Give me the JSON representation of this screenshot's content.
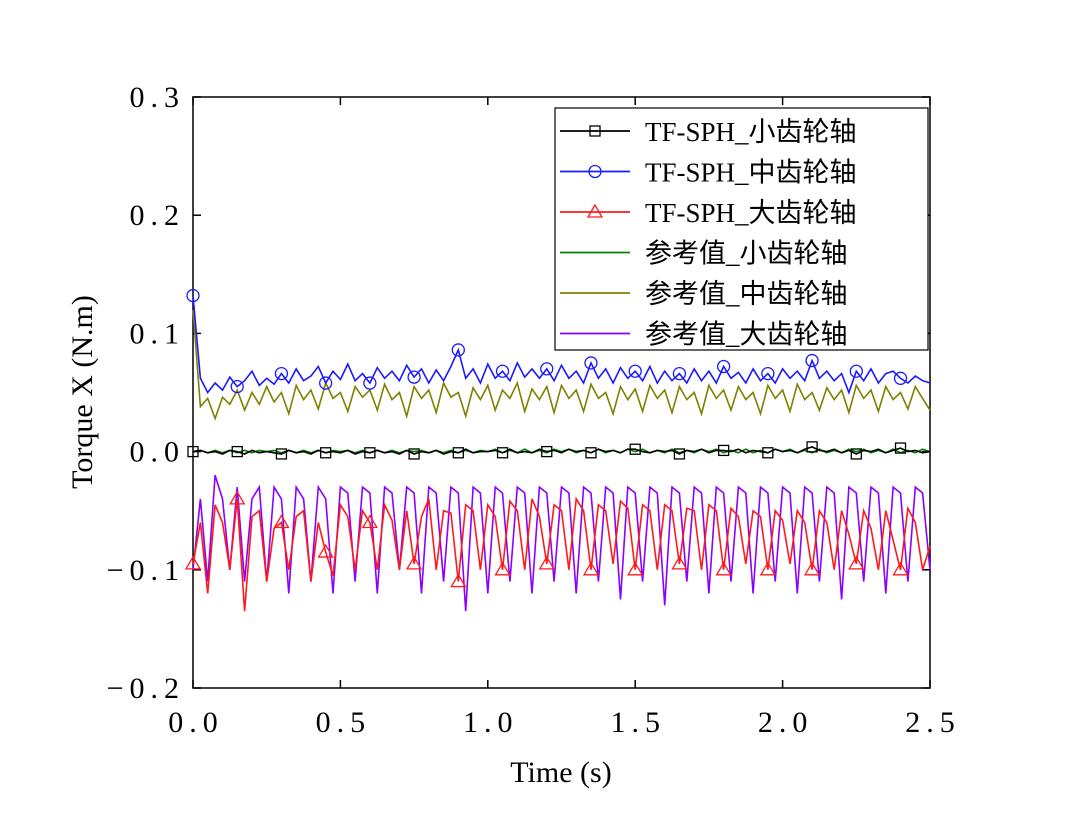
{
  "chart_data": {
    "type": "line",
    "xlabel": "Time (s)",
    "ylabel": "Torque X (N.m)",
    "xlim": [
      0,
      2.5
    ],
    "ylim": [
      -0.2,
      0.3
    ],
    "xticks": [
      {
        "value": 0,
        "label": "0.0"
      },
      0.5,
      {
        "value": 1,
        "label": "1.0"
      },
      1.5,
      {
        "value": 2,
        "label": "2.0"
      },
      2.5
    ],
    "yticks": [
      {
        "value": -0.2,
        "label": "−0.2"
      },
      {
        "value": -0.1,
        "label": "−0.1"
      },
      {
        "value": 0,
        "label": "0.0"
      },
      0.1,
      0.2,
      0.3
    ],
    "legend": "upper right",
    "x": [
      0,
      0.025,
      0.05,
      0.075,
      0.1,
      0.125,
      0.15,
      0.175,
      0.2,
      0.225,
      0.25,
      0.275,
      0.3,
      0.325,
      0.35,
      0.375,
      0.4,
      0.425,
      0.45,
      0.475,
      0.5,
      0.525,
      0.55,
      0.575,
      0.6,
      0.625,
      0.65,
      0.675,
      0.7,
      0.725,
      0.75,
      0.775,
      0.8,
      0.825,
      0.85,
      0.875,
      0.9,
      0.925,
      0.95,
      0.975,
      1,
      1.025,
      1.05,
      1.075,
      1.1,
      1.125,
      1.15,
      1.175,
      1.2,
      1.225,
      1.25,
      1.275,
      1.3,
      1.325,
      1.35,
      1.375,
      1.4,
      1.425,
      1.45,
      1.475,
      1.5,
      1.525,
      1.55,
      1.575,
      1.6,
      1.625,
      1.65,
      1.675,
      1.7,
      1.725,
      1.75,
      1.775,
      1.8,
      1.825,
      1.85,
      1.875,
      1.9,
      1.925,
      1.95,
      1.975,
      2,
      2.025,
      2.05,
      2.075,
      2.1,
      2.125,
      2.15,
      2.175,
      2.2,
      2.225,
      2.25,
      2.275,
      2.3,
      2.325,
      2.35,
      2.375,
      2.4,
      2.425,
      2.45,
      2.475,
      2.5
    ],
    "series": [
      {
        "name": "TF-SPH_小齿轮轴",
        "color": "#000000",
        "marker": "square",
        "values": [
          0,
          0.001,
          -0.001,
          0,
          -0.002,
          0.001,
          0,
          -0.002,
          0.001,
          -0.001,
          0,
          -0.001,
          -0.002,
          0.001,
          -0.001,
          0,
          -0.002,
          0.001,
          -0.001,
          0,
          -0.001,
          0.001,
          -0.002,
          0,
          -0.001,
          0.001,
          -0.001,
          0,
          -0.002,
          0.001,
          -0.002,
          0,
          -0.001,
          0.001,
          -0.002,
          0,
          -0.001,
          0.002,
          -0.001,
          0,
          0,
          0.001,
          -0.001,
          0.002,
          -0.001,
          0,
          -0.001,
          0.002,
          0,
          0.001,
          -0.001,
          0.002,
          0,
          0.001,
          -0.001,
          0.002,
          0,
          0.001,
          -0.001,
          0.002,
          0.002,
          0,
          -0.001,
          0.001,
          0,
          0.001,
          -0.002,
          0.001,
          0,
          0.002,
          -0.001,
          0.001,
          0.001,
          0,
          0.002,
          -0.001,
          0.001,
          0,
          -0.001,
          0.002,
          0,
          0.001,
          -0.001,
          0.002,
          0.004,
          0.001,
          0,
          0.002,
          -0.001,
          0.001,
          -0.002,
          0.001,
          0,
          0.002,
          -0.001,
          0.001,
          0.003,
          0,
          0.001,
          -0.001,
          0
        ]
      },
      {
        "name": "TF-SPH_中齿轮轴",
        "color": "#1a1aff",
        "marker": "circle",
        "values": [
          0.132,
          0.062,
          0.05,
          0.058,
          0.052,
          0.063,
          0.055,
          0.06,
          0.068,
          0.056,
          0.062,
          0.057,
          0.066,
          0.058,
          0.07,
          0.06,
          0.064,
          0.072,
          0.058,
          0.068,
          0.061,
          0.074,
          0.06,
          0.066,
          0.058,
          0.071,
          0.062,
          0.068,
          0.06,
          0.073,
          0.063,
          0.07,
          0.058,
          0.069,
          0.06,
          0.072,
          0.086,
          0.062,
          0.07,
          0.058,
          0.074,
          0.062,
          0.068,
          0.06,
          0.075,
          0.063,
          0.07,
          0.062,
          0.07,
          0.06,
          0.073,
          0.062,
          0.068,
          0.058,
          0.075,
          0.062,
          0.07,
          0.058,
          0.071,
          0.062,
          0.068,
          0.06,
          0.072,
          0.058,
          0.068,
          0.06,
          0.066,
          0.058,
          0.07,
          0.06,
          0.068,
          0.058,
          0.072,
          0.062,
          0.067,
          0.058,
          0.07,
          0.06,
          0.066,
          0.058,
          0.07,
          0.062,
          0.068,
          0.06,
          0.077,
          0.062,
          0.068,
          0.06,
          0.066,
          0.05,
          0.068,
          0.06,
          0.07,
          0.058,
          0.066,
          0.068,
          0.062,
          0.058,
          0.064,
          0.06,
          0.058
        ]
      },
      {
        "name": "TF-SPH_大齿轮轴",
        "color": "#ff1a1a",
        "marker": "triangle",
        "values": [
          -0.095,
          -0.06,
          -0.12,
          -0.045,
          -0.06,
          -0.1,
          -0.04,
          -0.135,
          -0.055,
          -0.05,
          -0.11,
          -0.065,
          -0.06,
          -0.1,
          -0.055,
          -0.05,
          -0.11,
          -0.06,
          -0.085,
          -0.105,
          -0.045,
          -0.055,
          -0.1,
          -0.05,
          -0.06,
          -0.1,
          -0.045,
          -0.058,
          -0.1,
          -0.05,
          -0.095,
          -0.055,
          -0.04,
          -0.1,
          -0.05,
          -0.052,
          -0.11,
          -0.045,
          -0.05,
          -0.1,
          -0.045,
          -0.055,
          -0.1,
          -0.042,
          -0.05,
          -0.1,
          -0.04,
          -0.055,
          -0.095,
          -0.045,
          -0.05,
          -0.1,
          -0.04,
          -0.05,
          -0.1,
          -0.045,
          -0.05,
          -0.095,
          -0.042,
          -0.048,
          -0.1,
          -0.045,
          -0.05,
          -0.1,
          -0.045,
          -0.05,
          -0.095,
          -0.048,
          -0.05,
          -0.1,
          -0.045,
          -0.05,
          -0.1,
          -0.048,
          -0.055,
          -0.095,
          -0.05,
          -0.055,
          -0.1,
          -0.05,
          -0.058,
          -0.095,
          -0.05,
          -0.06,
          -0.1,
          -0.05,
          -0.06,
          -0.1,
          -0.05,
          -0.07,
          -0.095,
          -0.05,
          -0.065,
          -0.1,
          -0.05,
          -0.075,
          -0.1,
          -0.048,
          -0.06,
          -0.1,
          -0.08
        ]
      },
      {
        "name": "参考值_小齿轮轴",
        "color": "#008000",
        "values": [
          0,
          0.001,
          -0.001,
          0.001,
          -0.001,
          0.001,
          -0.001,
          0.001,
          -0.001,
          0.001,
          0,
          0.001,
          -0.001,
          0.001,
          -0.001,
          0.001,
          -0.001,
          0.001,
          -0.001,
          0.001,
          0,
          0.001,
          -0.001,
          0.001,
          -0.001,
          0.001,
          -0.001,
          0.001,
          -0.001,
          0.001,
          0,
          0.001,
          -0.001,
          0.001,
          -0.001,
          0.001,
          -0.001,
          0.001,
          -0.001,
          0.001,
          0,
          0.002,
          -0.001,
          0.001,
          -0.001,
          0.002,
          -0.001,
          0.001,
          -0.001,
          0.002,
          0,
          0.002,
          -0.001,
          0.001,
          -0.001,
          0.002,
          -0.001,
          0.001,
          -0.001,
          0.002,
          0,
          0.002,
          -0.001,
          0.001,
          -0.001,
          0.002,
          -0.001,
          0.001,
          -0.001,
          0.002,
          0,
          0.002,
          -0.001,
          0.001,
          -0.001,
          0.002,
          -0.001,
          0.001,
          -0.001,
          0.002,
          0,
          0.002,
          -0.001,
          0.001,
          -0.001,
          0.002,
          -0.001,
          0.001,
          -0.001,
          0.002,
          0,
          0.002,
          -0.001,
          0.001,
          -0.001,
          0.002,
          -0.001,
          0.001,
          -0.001,
          0.002,
          0
        ]
      },
      {
        "name": "参考值_中齿轮轴",
        "color": "#808000",
        "values": [
          0.12,
          0.038,
          0.045,
          0.028,
          0.046,
          0.04,
          0.052,
          0.035,
          0.05,
          0.04,
          0.055,
          0.042,
          0.05,
          0.032,
          0.056,
          0.044,
          0.052,
          0.036,
          0.058,
          0.045,
          0.05,
          0.034,
          0.055,
          0.046,
          0.052,
          0.035,
          0.057,
          0.044,
          0.05,
          0.03,
          0.055,
          0.045,
          0.052,
          0.033,
          0.058,
          0.046,
          0.05,
          0.03,
          0.054,
          0.044,
          0.056,
          0.035,
          0.052,
          0.045,
          0.058,
          0.034,
          0.053,
          0.044,
          0.055,
          0.033,
          0.056,
          0.045,
          0.052,
          0.034,
          0.057,
          0.045,
          0.05,
          0.032,
          0.055,
          0.044,
          0.053,
          0.034,
          0.056,
          0.045,
          0.052,
          0.033,
          0.055,
          0.044,
          0.05,
          0.032,
          0.056,
          0.045,
          0.052,
          0.035,
          0.055,
          0.044,
          0.05,
          0.032,
          0.056,
          0.045,
          0.052,
          0.034,
          0.057,
          0.044,
          0.05,
          0.035,
          0.054,
          0.044,
          0.052,
          0.033,
          0.056,
          0.045,
          0.052,
          0.034,
          0.055,
          0.044,
          0.05,
          0.036,
          0.055,
          0.045,
          0.035
        ]
      },
      {
        "name": "参考值_大齿轮轴",
        "color": "#8b00ff",
        "values": [
          -0.1,
          -0.04,
          -0.11,
          -0.02,
          -0.04,
          -0.1,
          -0.03,
          -0.11,
          -0.04,
          -0.03,
          -0.11,
          -0.03,
          -0.04,
          -0.12,
          -0.03,
          -0.04,
          -0.11,
          -0.03,
          -0.04,
          -0.12,
          -0.03,
          -0.035,
          -0.11,
          -0.03,
          -0.035,
          -0.12,
          -0.03,
          -0.035,
          -0.1,
          -0.03,
          -0.035,
          -0.12,
          -0.03,
          -0.035,
          -0.11,
          -0.03,
          -0.035,
          -0.135,
          -0.03,
          -0.035,
          -0.12,
          -0.03,
          -0.035,
          -0.11,
          -0.03,
          -0.035,
          -0.12,
          -0.03,
          -0.035,
          -0.11,
          -0.03,
          -0.035,
          -0.12,
          -0.03,
          -0.035,
          -0.11,
          -0.03,
          -0.035,
          -0.125,
          -0.03,
          -0.035,
          -0.11,
          -0.03,
          -0.035,
          -0.13,
          -0.03,
          -0.035,
          -0.11,
          -0.03,
          -0.035,
          -0.12,
          -0.03,
          -0.035,
          -0.11,
          -0.03,
          -0.035,
          -0.12,
          -0.03,
          -0.035,
          -0.11,
          -0.03,
          -0.035,
          -0.12,
          -0.03,
          -0.035,
          -0.11,
          -0.03,
          -0.035,
          -0.125,
          -0.03,
          -0.035,
          -0.11,
          -0.03,
          -0.035,
          -0.12,
          -0.03,
          -0.035,
          -0.11,
          -0.03,
          -0.035,
          -0.1
        ]
      }
    ]
  }
}
